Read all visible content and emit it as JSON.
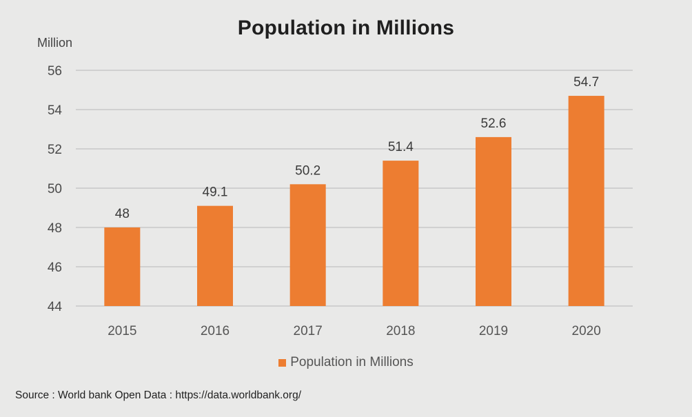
{
  "chart_data": {
    "type": "bar",
    "title": "Population in Millions",
    "ylabel": "Million",
    "xlabel": "",
    "categories": [
      "2015",
      "2016",
      "2017",
      "2018",
      "2019",
      "2020"
    ],
    "series": [
      {
        "name": "Population in Millions",
        "values": [
          48,
          49.1,
          50.2,
          51.4,
          52.6,
          54.7
        ],
        "data_labels": [
          "48",
          "49.1",
          "50.2",
          "51.4",
          "52.6",
          "54.7"
        ]
      }
    ],
    "ylim": [
      44,
      56
    ],
    "yticks": [
      44,
      46,
      48,
      50,
      52,
      54,
      56
    ],
    "ytick_labels": [
      "44",
      "46",
      "48",
      "50",
      "52",
      "54",
      "56"
    ],
    "grid": true,
    "legend_position": "bottom",
    "colors": {
      "bar": "#ed7d31",
      "grid": "#c2c2c2",
      "background": "#e9e9e8"
    }
  },
  "source": "Source : World bank Open Data : https://data.worldbank.org/"
}
